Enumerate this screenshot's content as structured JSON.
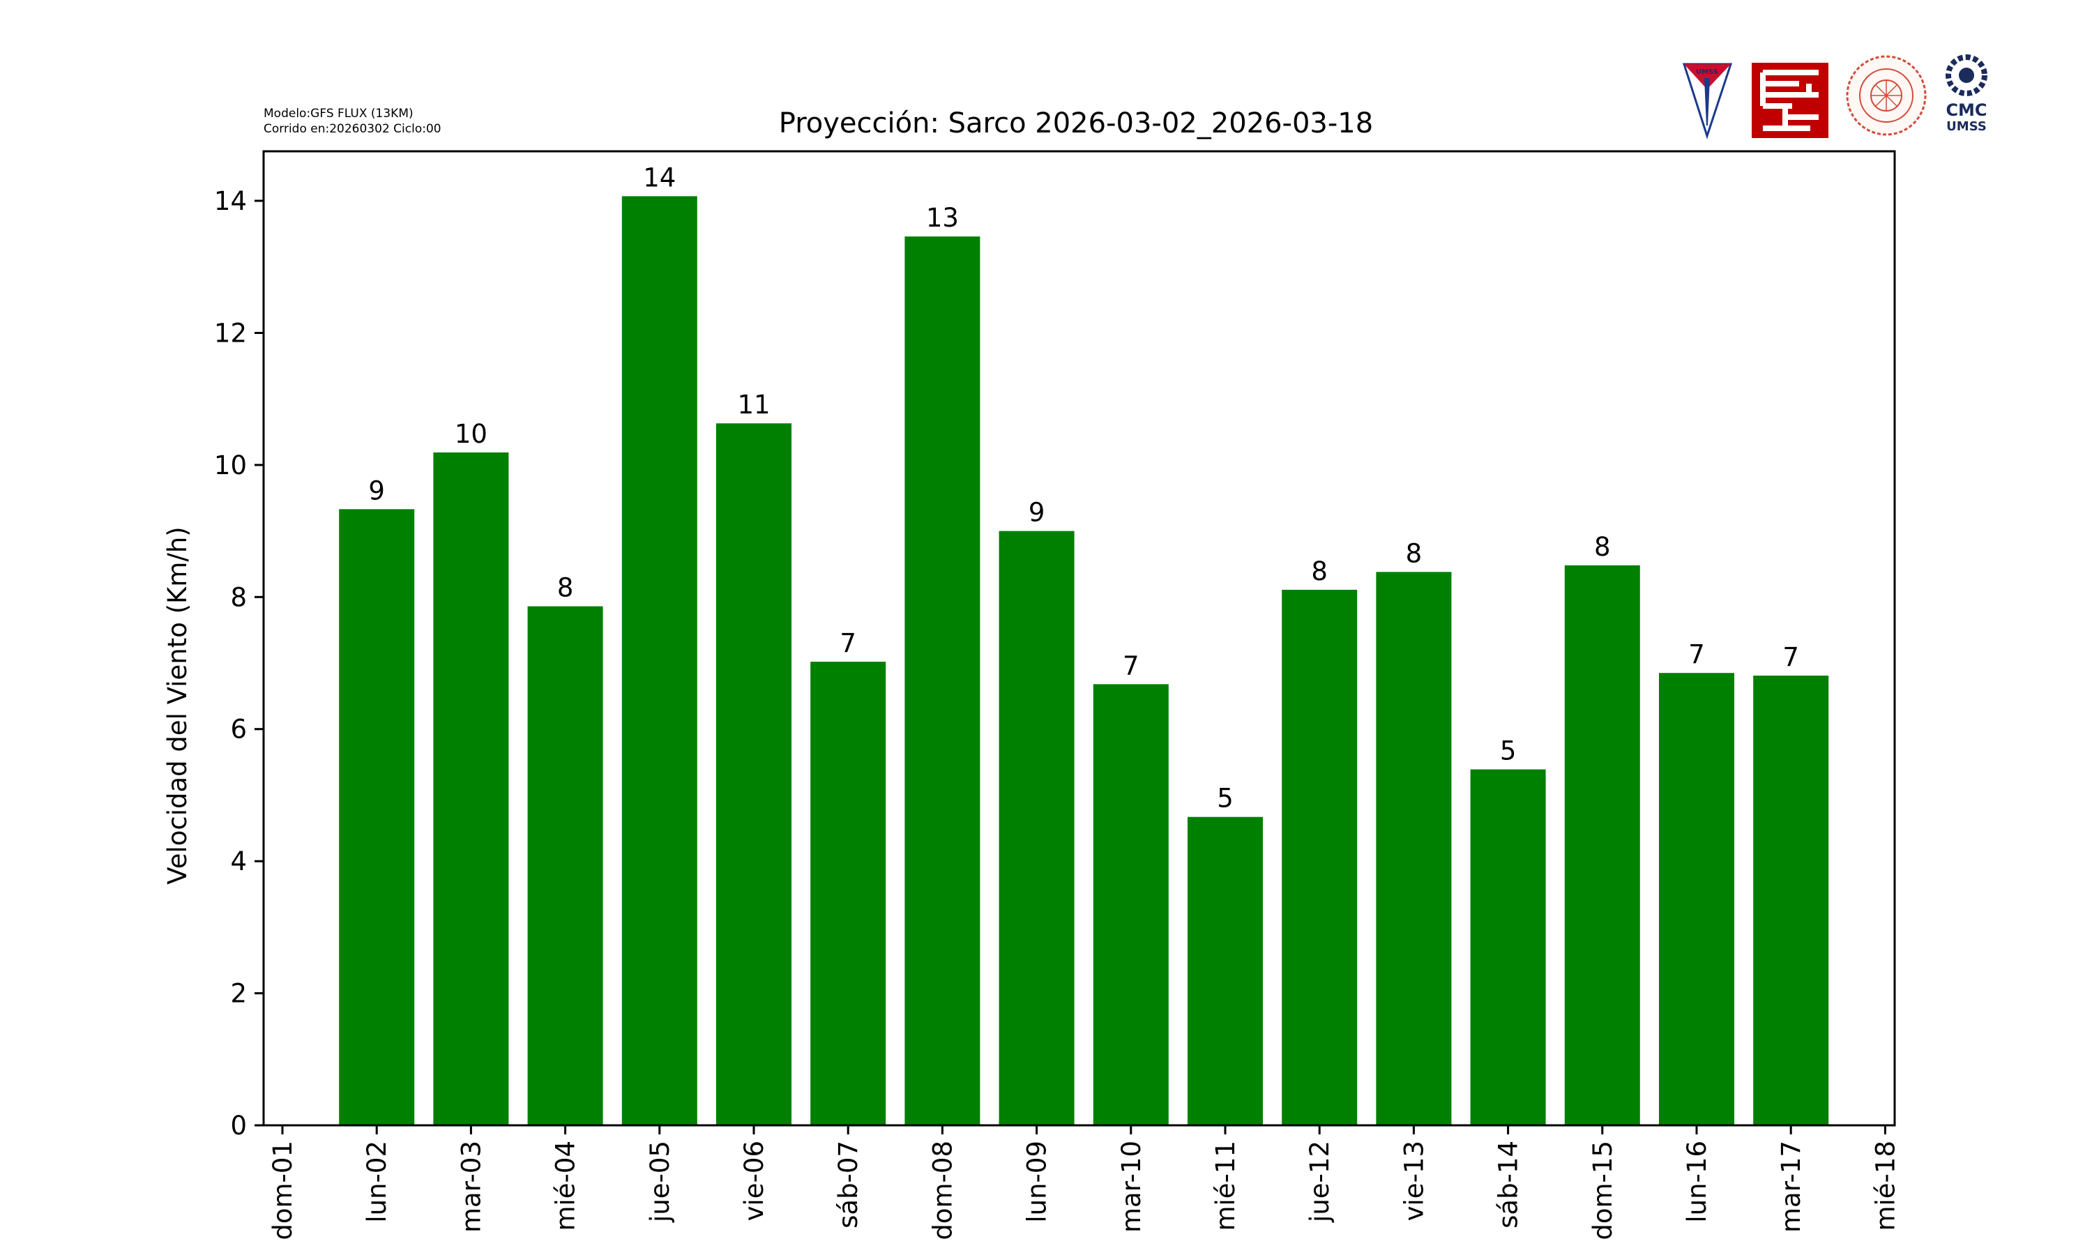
{
  "header": {
    "meta_line1": "Modelo:GFS FLUX (13KM)",
    "meta_line2": "Corrido en:20260302 Ciclo:00"
  },
  "logos": {
    "umss_shield_text": "UMSS",
    "cmc_line1": "CMC",
    "cmc_line2": "UMSS"
  },
  "colors": {
    "bar": "#008000",
    "axis": "#000000",
    "umss_red": "#c8102e",
    "umss_blue": "#1a3a8c",
    "fcyt_red": "#c00000",
    "cmc_navy": "#1a2b5c"
  },
  "chart_data": {
    "type": "bar",
    "title": "Proyección: Sarco  2026-03-02_2026-03-18",
    "xlabel": "",
    "ylabel": "Velocidad del Viento (Km/h)",
    "ylim": [
      0,
      14.75
    ],
    "yticks": [
      0,
      2,
      4,
      6,
      8,
      10,
      12,
      14
    ],
    "grid": false,
    "xtick_labels": [
      "dom-01",
      "lun-02",
      "mar-03",
      "mié-04",
      "jue-05",
      "vie-06",
      "sáb-07",
      "dom-08",
      "lun-09",
      "mar-10",
      "mié-11",
      "jue-12",
      "vie-13",
      "sáb-14",
      "dom-15",
      "lun-16",
      "mar-17",
      "mié-18"
    ],
    "categories": [
      "lun-02",
      "mar-03",
      "mié-04",
      "jue-05",
      "vie-06",
      "sáb-07",
      "dom-08",
      "lun-09",
      "mar-10",
      "mié-11",
      "jue-12",
      "vie-13",
      "sáb-14",
      "dom-15",
      "lun-16",
      "mar-17"
    ],
    "values": [
      9.33,
      10.19,
      7.86,
      14.07,
      10.63,
      7.02,
      13.46,
      9.0,
      6.68,
      4.67,
      8.11,
      8.38,
      5.39,
      8.48,
      6.85,
      6.81
    ],
    "data_labels": [
      "9",
      "10",
      "8",
      "14",
      "11",
      "7",
      "13",
      "9",
      "7",
      "5",
      "8",
      "8",
      "5",
      "8",
      "7",
      "7"
    ]
  }
}
